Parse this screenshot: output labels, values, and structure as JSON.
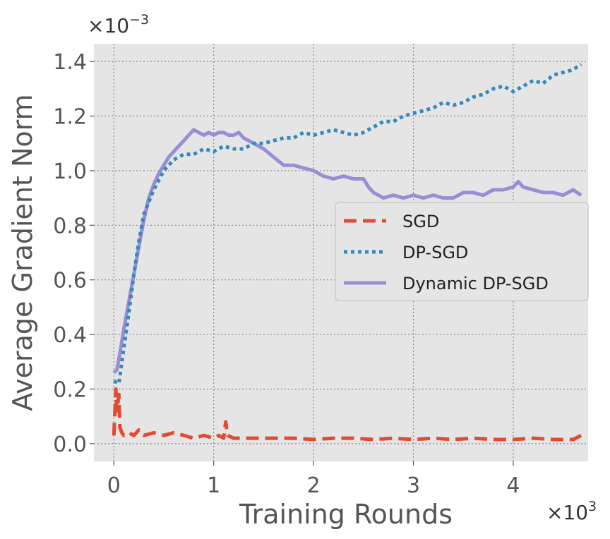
{
  "chart_data": {
    "type": "line",
    "title": "",
    "xlabel": "Training Rounds",
    "ylabel": "Average Gradient Norm",
    "x_multiplier_label": "×10",
    "x_multiplier_exp": "3",
    "y_multiplier_label": "×10",
    "y_multiplier_exp": "−3",
    "xlim": [
      -0.2,
      4.75
    ],
    "ylim": [
      -0.065,
      1.465
    ],
    "x_ticks": [
      0,
      1,
      2,
      3,
      4
    ],
    "x_tick_labels": [
      "0",
      "1",
      "2",
      "3",
      "4"
    ],
    "y_ticks": [
      0.0,
      0.2,
      0.4,
      0.6,
      0.8,
      1.0,
      1.2,
      1.4
    ],
    "y_tick_labels": [
      "0.0",
      "0.2",
      "0.4",
      "0.6",
      "0.8",
      "1.0",
      "1.2",
      "1.4"
    ],
    "grid": true,
    "legend_position": "center-right",
    "series": [
      {
        "name": "SGD",
        "style": "dashed",
        "color": "#e24a33",
        "x": [
          0.0,
          0.02,
          0.03,
          0.05,
          0.06,
          0.08,
          0.1,
          0.15,
          0.2,
          0.25,
          0.3,
          0.4,
          0.5,
          0.6,
          0.7,
          0.8,
          0.9,
          1.0,
          1.05,
          1.1,
          1.12,
          1.14,
          1.2,
          1.4,
          1.6,
          1.8,
          2.0,
          2.2,
          2.4,
          2.6,
          2.8,
          3.0,
          3.2,
          3.4,
          3.6,
          3.8,
          4.0,
          4.2,
          4.4,
          4.6,
          4.68
        ],
        "y": [
          0.03,
          0.2,
          0.12,
          0.18,
          0.06,
          0.04,
          0.03,
          0.04,
          0.03,
          0.05,
          0.03,
          0.04,
          0.03,
          0.04,
          0.03,
          0.02,
          0.03,
          0.02,
          0.03,
          0.02,
          0.08,
          0.03,
          0.02,
          0.02,
          0.02,
          0.02,
          0.015,
          0.02,
          0.02,
          0.015,
          0.02,
          0.015,
          0.02,
          0.015,
          0.02,
          0.015,
          0.015,
          0.02,
          0.015,
          0.015,
          0.03
        ]
      },
      {
        "name": "DP-SGD",
        "style": "dotted",
        "color": "#348abd",
        "x": [
          0.0,
          0.05,
          0.1,
          0.15,
          0.2,
          0.25,
          0.3,
          0.4,
          0.5,
          0.6,
          0.7,
          0.8,
          0.9,
          1.0,
          1.1,
          1.2,
          1.3,
          1.4,
          1.5,
          1.6,
          1.7,
          1.8,
          1.9,
          2.0,
          2.1,
          2.2,
          2.3,
          2.4,
          2.5,
          2.6,
          2.7,
          2.8,
          2.9,
          3.0,
          3.1,
          3.2,
          3.3,
          3.4,
          3.5,
          3.6,
          3.7,
          3.8,
          3.9,
          4.0,
          4.1,
          4.2,
          4.3,
          4.4,
          4.5,
          4.6,
          4.68
        ],
        "y": [
          0.23,
          0.22,
          0.35,
          0.48,
          0.62,
          0.74,
          0.84,
          0.93,
          1.0,
          1.04,
          1.06,
          1.06,
          1.08,
          1.07,
          1.09,
          1.08,
          1.08,
          1.1,
          1.1,
          1.11,
          1.12,
          1.12,
          1.14,
          1.13,
          1.14,
          1.15,
          1.14,
          1.13,
          1.14,
          1.16,
          1.18,
          1.18,
          1.2,
          1.21,
          1.22,
          1.23,
          1.25,
          1.24,
          1.25,
          1.27,
          1.28,
          1.3,
          1.31,
          1.29,
          1.31,
          1.33,
          1.32,
          1.35,
          1.36,
          1.37,
          1.39
        ]
      },
      {
        "name": "Dynamic DP-SGD",
        "style": "solid",
        "color": "#988ed5",
        "x": [
          0.0,
          0.03,
          0.06,
          0.1,
          0.15,
          0.2,
          0.25,
          0.3,
          0.35,
          0.4,
          0.45,
          0.5,
          0.55,
          0.6,
          0.65,
          0.7,
          0.75,
          0.8,
          0.85,
          0.9,
          0.95,
          1.0,
          1.05,
          1.1,
          1.15,
          1.2,
          1.25,
          1.3,
          1.35,
          1.4,
          1.5,
          1.6,
          1.7,
          1.8,
          1.9,
          2.0,
          2.1,
          2.2,
          2.3,
          2.4,
          2.5,
          2.55,
          2.6,
          2.7,
          2.8,
          2.9,
          3.0,
          3.1,
          3.2,
          3.3,
          3.4,
          3.5,
          3.6,
          3.7,
          3.8,
          3.9,
          4.0,
          4.05,
          4.1,
          4.2,
          4.3,
          4.4,
          4.5,
          4.6,
          4.68
        ],
        "y": [
          0.26,
          0.27,
          0.33,
          0.42,
          0.52,
          0.62,
          0.72,
          0.82,
          0.9,
          0.95,
          0.99,
          1.02,
          1.05,
          1.07,
          1.09,
          1.11,
          1.13,
          1.15,
          1.14,
          1.13,
          1.14,
          1.13,
          1.14,
          1.14,
          1.13,
          1.13,
          1.14,
          1.12,
          1.11,
          1.1,
          1.08,
          1.05,
          1.02,
          1.02,
          1.01,
          1.0,
          0.98,
          0.97,
          0.98,
          0.97,
          0.97,
          0.94,
          0.92,
          0.9,
          0.91,
          0.9,
          0.91,
          0.9,
          0.91,
          0.9,
          0.9,
          0.92,
          0.92,
          0.91,
          0.93,
          0.93,
          0.94,
          0.96,
          0.94,
          0.93,
          0.92,
          0.92,
          0.91,
          0.93,
          0.91
        ]
      }
    ]
  }
}
